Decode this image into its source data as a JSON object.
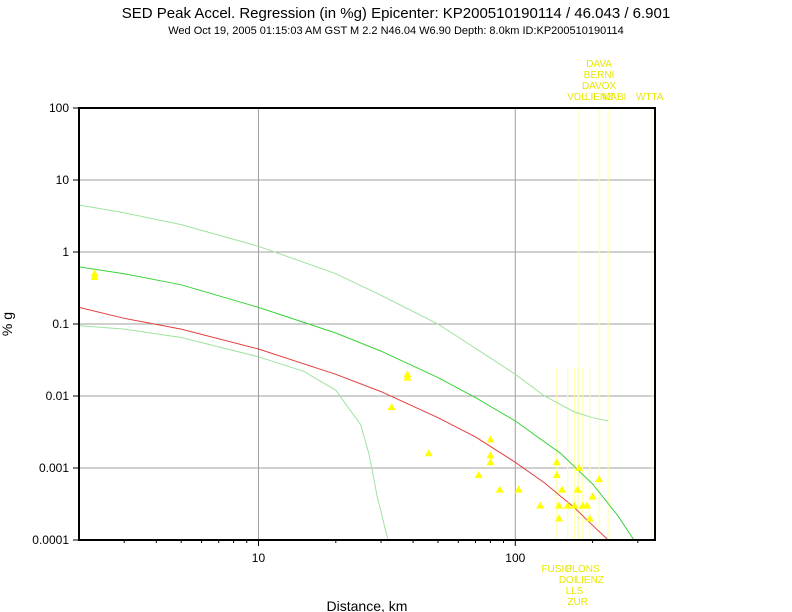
{
  "chart_data": {
    "type": "scatter",
    "title": "SED Peak Accel. Regression (in %g) Epicenter: KP200510190114 / 46.043 / 6.901",
    "subtitle": "Wed Oct 19, 2005 01:15:03 AM GST    M 2.2    N46.04 W6.90    Depth: 8.0km    ID:KP200510190114",
    "xlabel": "Distance, km",
    "ylabel": "% g",
    "x_scale": "log",
    "y_scale": "log",
    "xlim": [
      2,
      350
    ],
    "ylim": [
      0.0001,
      100
    ],
    "x_ticks": [
      "10",
      "100"
    ],
    "y_ticks": [
      "0.0001",
      "0.001",
      "0.01",
      "0.1",
      "1",
      "10",
      "100"
    ],
    "grid": true,
    "colors": {
      "points": "#ffff00",
      "median_curve": "#e0403f",
      "upper_curve": "#3ad23a",
      "sigma_curves": "#9fe39f",
      "station_lines": "#ffffaa",
      "station_labels": "#e8e800",
      "grid": "#a0a0a0",
      "frame": "#000000"
    },
    "series": [
      {
        "type": "scatter",
        "points": [
          [
            2.3,
            0.5
          ],
          [
            2.3,
            0.45
          ],
          [
            38,
            0.02
          ],
          [
            38,
            0.018
          ],
          [
            33,
            0.007
          ],
          [
            46,
            0.0016
          ],
          [
            72,
            0.0008
          ],
          [
            80,
            0.0025
          ],
          [
            80,
            0.0015
          ],
          [
            80,
            0.0012
          ],
          [
            87,
            0.0005
          ],
          [
            103,
            0.0005
          ],
          [
            125,
            0.0003
          ],
          [
            145,
            0.0012
          ],
          [
            145,
            0.0008
          ],
          [
            148,
            0.0003
          ],
          [
            148,
            0.0002
          ],
          [
            152,
            0.0005
          ],
          [
            160,
            0.0003
          ],
          [
            170,
            0.0003
          ],
          [
            175,
            0.0005
          ],
          [
            177,
            0.001
          ],
          [
            183,
            0.0003
          ],
          [
            190,
            0.0003
          ],
          [
            195,
            0.0002
          ],
          [
            200,
            0.0004
          ],
          [
            212,
            0.0007
          ]
        ]
      },
      {
        "type": "line",
        "role": "median",
        "x": [
          2,
          3,
          5,
          10,
          20,
          30,
          50,
          70,
          100,
          130,
          170,
          200,
          230
        ],
        "y": [
          0.17,
          0.12,
          0.085,
          0.045,
          0.02,
          0.0115,
          0.005,
          0.0027,
          0.0012,
          0.00062,
          0.00028,
          0.00016,
          0.0001
        ]
      },
      {
        "type": "line",
        "role": "upper",
        "x": [
          2,
          3,
          5,
          10,
          20,
          30,
          50,
          70,
          100,
          150,
          200,
          250,
          290
        ],
        "y": [
          0.62,
          0.5,
          0.35,
          0.17,
          0.075,
          0.042,
          0.018,
          0.0095,
          0.0045,
          0.0016,
          0.0006,
          0.00022,
          0.0001
        ]
      },
      {
        "type": "line",
        "role": "upper-sigma",
        "x": [
          2,
          3,
          5,
          10,
          20,
          30,
          50,
          70,
          100,
          130,
          170,
          200,
          230
        ],
        "y": [
          4.5,
          3.5,
          2.4,
          1.2,
          0.5,
          0.25,
          0.1,
          0.046,
          0.02,
          0.01,
          0.006,
          0.005,
          0.0045
        ]
      },
      {
        "type": "line",
        "role": "lower-sigma",
        "x": [
          2,
          3,
          5,
          10,
          15,
          20,
          25,
          27,
          29,
          30,
          31,
          32
        ],
        "y": [
          0.095,
          0.085,
          0.065,
          0.035,
          0.022,
          0.012,
          0.004,
          0.0015,
          0.0004,
          0.00025,
          0.00015,
          0.0001
        ]
      }
    ],
    "station_labels_top": [
      {
        "label": "DAVA",
        "x": 212
      },
      {
        "label": "BERNI",
        "x": 212
      },
      {
        "label": "DAVOX",
        "x": 212
      },
      {
        "label": "LIENZ",
        "x": 212
      },
      {
        "label": "VDL",
        "x": 177
      },
      {
        "label": "MABI",
        "x": 230
      },
      {
        "label": "WTTA",
        "x": 340
      }
    ],
    "station_labels_bottom": [
      {
        "label": "FUSIO",
        "x": 145
      },
      {
        "label": "PLONS",
        "x": 183
      },
      {
        "label": "DOI",
        "x": 160
      },
      {
        "label": "LIENZ",
        "x": 195
      },
      {
        "label": "LLS",
        "x": 170
      },
      {
        "label": "ZUR",
        "x": 175
      }
    ]
  }
}
